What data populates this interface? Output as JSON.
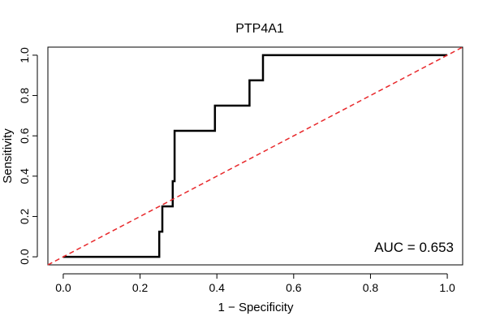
{
  "chart_data": {
    "type": "line",
    "title": "PTP4A1",
    "xlabel": "1 − Specificity",
    "ylabel": "Sensitivity",
    "xlim": [
      -0.04,
      1.04
    ],
    "ylim": [
      -0.04,
      1.04
    ],
    "x_ticks": [
      0.0,
      0.2,
      0.4,
      0.6,
      0.8,
      1.0
    ],
    "y_ticks": [
      0.0,
      0.2,
      0.4,
      0.6,
      0.8,
      1.0
    ],
    "x_tick_labels": [
      "0.0",
      "0.2",
      "0.4",
      "0.6",
      "0.8",
      "1.0"
    ],
    "y_tick_labels": [
      "0.0",
      "0.2",
      "0.4",
      "0.6",
      "0.8",
      "1.0"
    ],
    "grid": false,
    "annotation": "AUC = 0.653",
    "series": [
      {
        "color": "#000000",
        "style": "solid",
        "x": [
          0.0,
          0.25,
          0.25,
          0.258,
          0.258,
          0.285,
          0.285,
          0.29,
          0.29,
          0.395,
          0.395,
          0.485,
          0.485,
          0.52,
          0.52,
          1.0
        ],
        "y": [
          0.0,
          0.0,
          0.125,
          0.125,
          0.25,
          0.25,
          0.375,
          0.375,
          0.625,
          0.625,
          0.75,
          0.75,
          0.875,
          0.875,
          1.0,
          1.0
        ]
      },
      {
        "color": "#e8282b",
        "style": "dashed",
        "x": [
          -0.04,
          1.04
        ],
        "y": [
          -0.04,
          1.04
        ]
      }
    ]
  }
}
